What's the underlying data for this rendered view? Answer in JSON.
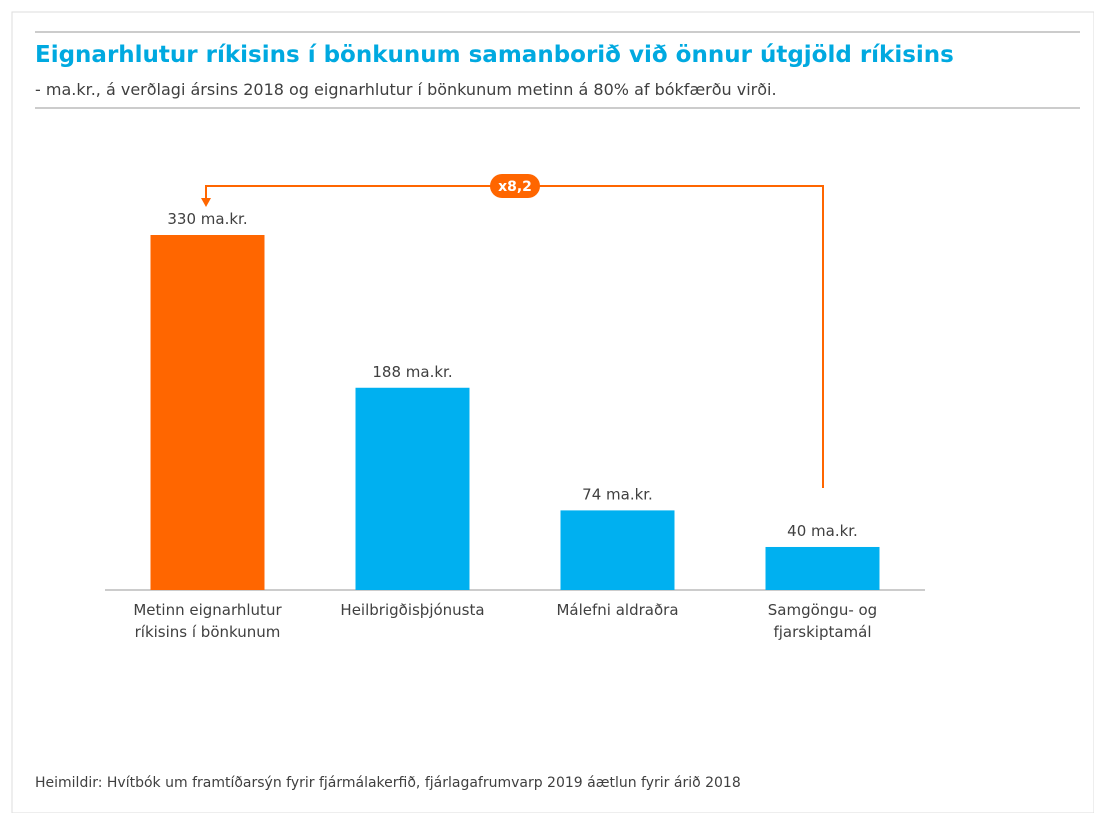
{
  "chart_data": {
    "type": "bar",
    "title": "Eignarhlutur ríkisins í bönkunum samanborið við önnur útgjöld ríkisins",
    "subtitle": "- ma.kr., á verðlagi ársins 2018 og eignarhlutur í bönkunum metinn á 80% af bókfærðu virði.",
    "categories": [
      "Metinn eignarhlutur\nríkisins í bönkunum",
      "Heilbrigðisþjónusta",
      "Málefni aldraðra",
      "Samgöngu- og\nfjarskiptamál"
    ],
    "values": [
      330,
      188,
      74,
      40
    ],
    "value_labels": [
      "330 ma.kr.",
      "188 ma.kr.",
      "74 ma.kr.",
      "40 ma.kr."
    ],
    "colors": [
      "#ff6600",
      "#00b0f0",
      "#00b0f0",
      "#00b0f0"
    ],
    "annotation": "x8,2",
    "source": "Heimildir: Hvítbók um framtíðarsýn fyrir fjármálakerfið, fjárlagafrumvarp 2019 áætlun fyrir árið 2018"
  }
}
